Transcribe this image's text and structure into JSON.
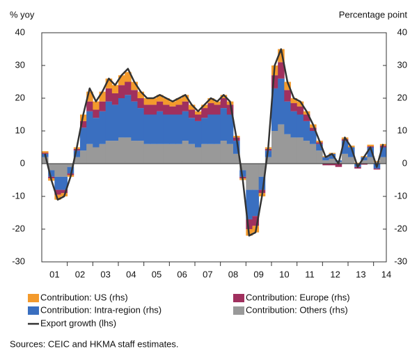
{
  "chart_data": {
    "type": "bar",
    "stacked": true,
    "y_axis_label": "% yoy",
    "y2_axis_label": "Percentage point",
    "source": "Sources: CEIC and HKMA staff estimates.",
    "categories": [
      null,
      "01",
      null,
      null,
      null,
      "02",
      null,
      null,
      null,
      "03",
      null,
      null,
      null,
      "04",
      null,
      null,
      null,
      "05",
      null,
      null,
      null,
      "06",
      null,
      null,
      null,
      "07",
      null,
      null,
      null,
      "08",
      null,
      null,
      null,
      "09",
      null,
      null,
      null,
      "10",
      null,
      null,
      null,
      "11",
      null,
      null,
      null,
      "12",
      null,
      null,
      null,
      "13",
      null,
      null,
      null,
      "14"
    ],
    "ylim": [
      -30,
      40
    ],
    "yticks": [
      -30,
      -20,
      -10,
      0,
      10,
      20,
      30,
      40
    ],
    "y2lim": [
      -30,
      40
    ],
    "y2ticks": [
      -30,
      -20,
      -10,
      0,
      10,
      20,
      30,
      40
    ],
    "series": [
      {
        "name": "Contribution: US (rhs)",
        "color": "#f39a2c",
        "axis": "y2",
        "values": [
          0.5,
          -0.7,
          -1.5,
          -1,
          -0.5,
          0.5,
          2,
          3,
          2.5,
          3,
          3,
          2.5,
          3,
          3,
          2.5,
          2,
          2,
          2,
          2,
          2,
          1.5,
          2,
          2,
          1.5,
          1,
          1,
          1.5,
          1,
          1,
          1,
          0.5,
          -0.5,
          -2,
          -2,
          -1,
          0.5,
          3,
          4,
          2.5,
          1.5,
          1.5,
          1,
          1,
          0.5,
          0.3,
          0.3,
          0,
          0.5,
          0.5,
          0.3,
          0.3,
          0.5,
          0.3,
          0.5
        ]
      },
      {
        "name": "Contribution: Europe (rhs)",
        "color": "#a0305e",
        "axis": "y2",
        "values": [
          0.3,
          -0.5,
          -1.5,
          -1,
          -0.5,
          0.5,
          2,
          3,
          2.5,
          3,
          4,
          3.5,
          4,
          4,
          3.5,
          3,
          3,
          3,
          3,
          3,
          2.5,
          3,
          3,
          2.5,
          2,
          3,
          3.5,
          3,
          3,
          3,
          1,
          -0.5,
          -3,
          -3,
          -1,
          0.5,
          4,
          5,
          3.5,
          2.5,
          2.5,
          2,
          1,
          0.5,
          -0.5,
          -0.5,
          -1,
          0.5,
          0,
          -0.5,
          -0.3,
          0.3,
          -0.3,
          0.5
        ]
      },
      {
        "name": "Contribution: Intra-region (rhs)",
        "color": "#3a6fc0",
        "axis": "y2",
        "values": [
          1,
          -2,
          -4,
          -4,
          -2,
          2,
          7,
          10,
          9,
          10,
          12,
          11,
          12,
          13,
          12,
          10,
          9,
          9,
          10,
          9,
          9,
          9,
          9,
          8,
          8,
          8,
          9,
          9,
          10,
          9,
          4,
          -2,
          -9,
          -8,
          -4,
          2,
          13,
          14,
          10,
          8,
          7,
          6,
          4,
          2,
          1,
          1.5,
          0.5,
          4,
          3,
          -1,
          1,
          3,
          -1.5,
          3
        ]
      },
      {
        "name": "Contribution: Others (rhs)",
        "color": "#999999",
        "axis": "y2",
        "values": [
          2,
          -2,
          -4,
          -4,
          -1,
          2,
          4,
          6,
          5,
          6,
          7,
          7,
          8,
          8,
          7,
          7,
          6,
          6,
          6,
          6,
          6,
          6,
          7,
          6,
          5,
          6,
          6,
          6,
          7,
          6,
          3,
          -2,
          -8,
          -8,
          -4,
          2,
          10,
          12,
          9,
          8,
          8,
          7,
          6,
          4,
          1,
          1.5,
          0.5,
          3,
          2,
          0,
          1,
          2,
          0.5,
          2
        ]
      },
      {
        "name": "Export growth (lhs)",
        "color": "#333333",
        "axis": "y",
        "values": [
          3,
          -5,
          -11,
          -10,
          -4,
          5,
          15,
          23,
          19,
          22,
          26,
          24,
          27,
          29,
          25,
          22,
          20,
          20,
          21,
          20,
          19,
          20,
          21,
          18,
          16,
          18,
          20,
          19,
          21,
          19,
          8,
          -5,
          -22,
          -21,
          -10,
          5,
          30,
          35,
          25,
          20,
          19,
          16,
          12,
          7,
          2,
          3,
          0,
          8,
          5,
          -1,
          2,
          5,
          -1,
          6
        ]
      }
    ]
  }
}
